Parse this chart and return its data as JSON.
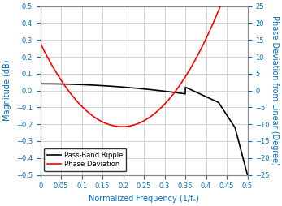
{
  "title": "",
  "xlabel": "Normalized Frequency (1/fₛ)",
  "ylabel_left": "Magnitude (dB)",
  "ylabel_right": "Phase Deviation from Linear (Degree)",
  "xlim": [
    0,
    0.5
  ],
  "ylim_left": [
    -0.5,
    0.5
  ],
  "ylim_right": [
    -25,
    25
  ],
  "yticks_left": [
    -0.5,
    -0.4,
    -0.3,
    -0.2,
    -0.1,
    0.0,
    0.1,
    0.2,
    0.3,
    0.4,
    0.5
  ],
  "yticks_right": [
    -25,
    -20,
    -15,
    -10,
    -5,
    0,
    5,
    10,
    15,
    20,
    25
  ],
  "xticks": [
    0,
    0.05,
    0.1,
    0.15,
    0.2,
    0.25,
    0.3,
    0.35,
    0.4,
    0.45,
    0.5
  ],
  "legend_labels": [
    "Pass-Band Ripple",
    "Phase Deviation"
  ],
  "legend_colors": [
    "black",
    "red"
  ],
  "grid_color": "#cccccc",
  "line_color_ripple": "black",
  "line_color_phase": "red",
  "axis_label_color": "#0070c0",
  "tick_label_color": "#0070c0",
  "background_color": "#ffffff"
}
